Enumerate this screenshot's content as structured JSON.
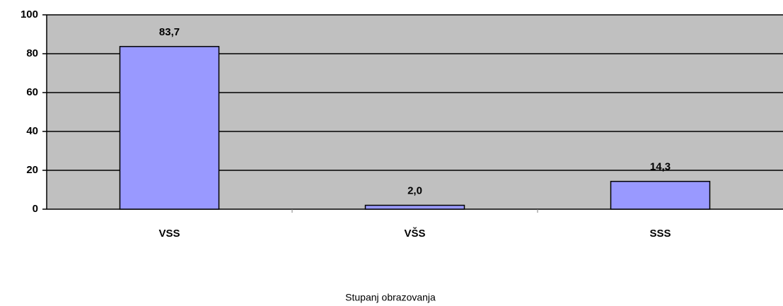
{
  "chart_data": {
    "type": "bar",
    "categories": [
      "VSS",
      "VŠS",
      "SSS"
    ],
    "values": [
      83.7,
      2.0,
      14.3
    ],
    "value_labels": [
      "83,7",
      "2,0",
      "14,3"
    ],
    "color": "#9999ff",
    "x_label": "Stupanj obrazovanja",
    "ylim": [
      0,
      100
    ],
    "yticks": [
      0,
      20,
      40,
      60,
      80,
      100
    ],
    "grid": true
  }
}
